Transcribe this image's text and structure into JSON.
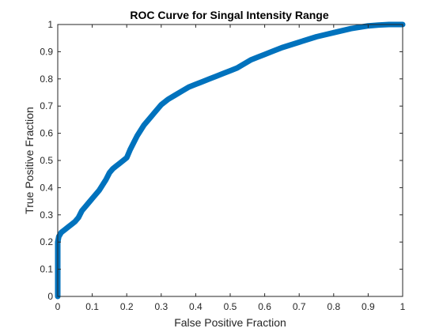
{
  "chart_data": {
    "type": "line",
    "title": "ROC Curve for Singal Intensity Range",
    "xlabel": "False Positive Fraction",
    "ylabel": "True Positive Fraction",
    "xlim": [
      0,
      1
    ],
    "ylim": [
      0,
      1
    ],
    "xticks": [
      0,
      0.1,
      0.2,
      0.3,
      0.4,
      0.5,
      0.6,
      0.7,
      0.8,
      0.9,
      1
    ],
    "yticks": [
      0,
      0.1,
      0.2,
      0.3,
      0.4,
      0.5,
      0.6,
      0.7,
      0.8,
      0.9,
      1
    ],
    "xtick_labels": [
      "0",
      "0.1",
      "0.2",
      "0.3",
      "0.4",
      "0.5",
      "0.6",
      "0.7",
      "0.8",
      "0.9",
      "1"
    ],
    "ytick_labels": [
      "0",
      "0.1",
      "0.2",
      "0.3",
      "0.4",
      "0.5",
      "0.6",
      "0.7",
      "0.8",
      "0.9",
      "1"
    ],
    "grid": false,
    "line_color": "#0072BD",
    "series": [
      {
        "x": [
          0,
          0,
          0,
          0.003,
          0.01,
          0.02,
          0.03,
          0.04,
          0.05,
          0.06,
          0.07,
          0.08,
          0.09,
          0.1,
          0.11,
          0.12,
          0.13,
          0.14,
          0.15,
          0.16,
          0.17,
          0.18,
          0.19,
          0.2,
          0.21,
          0.22,
          0.23,
          0.24,
          0.25,
          0.26,
          0.27,
          0.28,
          0.29,
          0.3,
          0.32,
          0.34,
          0.36,
          0.38,
          0.4,
          0.42,
          0.44,
          0.46,
          0.48,
          0.5,
          0.52,
          0.54,
          0.56,
          0.58,
          0.6,
          0.62,
          0.65,
          0.7,
          0.75,
          0.8,
          0.85,
          0.9,
          0.93,
          0.96,
          1
        ],
        "y": [
          0,
          0.1,
          0.2,
          0.22,
          0.235,
          0.245,
          0.255,
          0.265,
          0.275,
          0.29,
          0.315,
          0.33,
          0.345,
          0.36,
          0.375,
          0.39,
          0.41,
          0.43,
          0.455,
          0.47,
          0.48,
          0.49,
          0.5,
          0.51,
          0.54,
          0.565,
          0.59,
          0.61,
          0.63,
          0.645,
          0.66,
          0.675,
          0.69,
          0.705,
          0.725,
          0.74,
          0.755,
          0.77,
          0.78,
          0.79,
          0.8,
          0.81,
          0.82,
          0.83,
          0.84,
          0.855,
          0.87,
          0.88,
          0.89,
          0.9,
          0.915,
          0.935,
          0.955,
          0.97,
          0.985,
          0.995,
          0.998,
          1,
          1
        ]
      }
    ]
  }
}
